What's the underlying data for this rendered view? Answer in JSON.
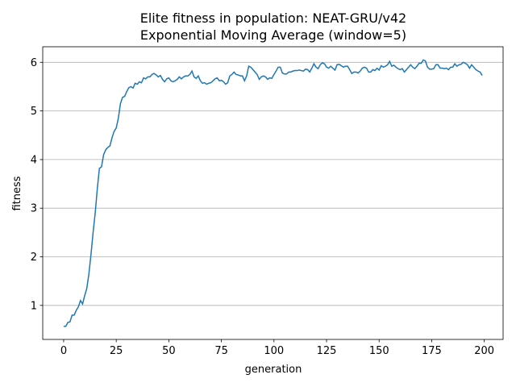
{
  "chart_data": {
    "type": "line",
    "title": "Elite fitness in population: NEAT-GRU/v42",
    "subtitle": "Exponential Moving Average (window=5)",
    "x_label": "generation",
    "y_label": "fitness",
    "x": [
      0,
      1,
      2,
      3,
      4,
      5,
      6,
      7,
      8,
      9,
      10,
      11,
      12,
      13,
      14,
      15,
      16,
      17,
      18,
      19,
      20,
      21,
      22,
      23,
      24,
      25,
      26,
      27,
      28,
      29,
      30,
      31,
      32,
      33,
      34,
      35,
      36,
      37,
      38,
      39,
      40,
      41,
      42,
      43,
      44,
      45,
      46,
      47,
      48,
      49,
      50,
      51,
      52,
      53,
      54,
      55,
      56,
      57,
      58,
      59,
      60,
      61,
      62,
      63,
      64,
      65,
      66,
      67,
      68,
      69,
      70,
      71,
      72,
      73,
      74,
      75,
      76,
      77,
      78,
      79,
      80,
      81,
      82,
      83,
      84,
      85,
      86,
      87,
      88,
      89,
      90,
      91,
      92,
      93,
      94,
      95,
      96,
      97,
      98,
      99,
      100,
      101,
      102,
      103,
      104,
      105,
      106,
      107,
      108,
      109,
      110,
      111,
      112,
      113,
      114,
      115,
      116,
      117,
      118,
      119,
      120,
      121,
      122,
      123,
      124,
      125,
      126,
      127,
      128,
      129,
      130,
      131,
      132,
      133,
      134,
      135,
      136,
      137,
      138,
      139,
      140,
      141,
      142,
      143,
      144,
      145,
      146,
      147,
      148,
      149,
      150,
      151,
      152,
      153,
      154,
      155,
      156,
      157,
      158,
      159,
      160,
      161,
      162,
      163,
      164,
      165,
      166,
      167,
      168,
      169,
      170,
      171,
      172,
      173,
      174,
      175,
      176,
      177,
      178,
      179,
      180,
      181,
      182,
      183,
      184,
      185,
      186,
      187,
      188,
      189,
      190,
      191,
      192,
      193,
      194,
      195,
      196,
      197,
      198,
      199
    ],
    "series": [
      {
        "name": "fitness",
        "color": "#1f77b4",
        "values": [
          0.57,
          0.57,
          0.65,
          0.66,
          0.8,
          0.8,
          0.9,
          0.97,
          1.1,
          1.03,
          1.2,
          1.35,
          1.65,
          2.05,
          2.5,
          2.9,
          3.4,
          3.82,
          3.85,
          4.1,
          4.2,
          4.25,
          4.28,
          4.45,
          4.58,
          4.65,
          4.85,
          5.15,
          5.28,
          5.3,
          5.4,
          5.48,
          5.5,
          5.47,
          5.57,
          5.55,
          5.6,
          5.58,
          5.68,
          5.66,
          5.7,
          5.7,
          5.75,
          5.77,
          5.74,
          5.7,
          5.73,
          5.65,
          5.6,
          5.66,
          5.68,
          5.62,
          5.6,
          5.62,
          5.65,
          5.7,
          5.66,
          5.7,
          5.72,
          5.72,
          5.75,
          5.82,
          5.7,
          5.67,
          5.72,
          5.62,
          5.57,
          5.58,
          5.55,
          5.57,
          5.58,
          5.62,
          5.66,
          5.68,
          5.62,
          5.63,
          5.6,
          5.55,
          5.58,
          5.72,
          5.75,
          5.8,
          5.75,
          5.74,
          5.72,
          5.72,
          5.62,
          5.72,
          5.92,
          5.9,
          5.85,
          5.8,
          5.75,
          5.65,
          5.7,
          5.72,
          5.7,
          5.65,
          5.68,
          5.67,
          5.75,
          5.82,
          5.9,
          5.9,
          5.78,
          5.76,
          5.76,
          5.8,
          5.8,
          5.82,
          5.83,
          5.83,
          5.84,
          5.83,
          5.82,
          5.86,
          5.85,
          5.8,
          5.88,
          5.97,
          5.9,
          5.87,
          5.95,
          5.99,
          5.97,
          5.9,
          5.88,
          5.92,
          5.88,
          5.84,
          5.95,
          5.96,
          5.93,
          5.9,
          5.92,
          5.92,
          5.85,
          5.77,
          5.8,
          5.8,
          5.78,
          5.82,
          5.88,
          5.9,
          5.88,
          5.8,
          5.8,
          5.85,
          5.83,
          5.88,
          5.84,
          5.93,
          5.9,
          5.92,
          5.95,
          6.02,
          5.92,
          5.94,
          5.9,
          5.87,
          5.85,
          5.87,
          5.8,
          5.85,
          5.9,
          5.95,
          5.9,
          5.87,
          5.92,
          5.98,
          5.98,
          6.05,
          6.03,
          5.9,
          5.86,
          5.86,
          5.87,
          5.95,
          5.95,
          5.88,
          5.88,
          5.87,
          5.88,
          5.85,
          5.9,
          5.9,
          5.97,
          5.92,
          5.95,
          5.96,
          6.0,
          5.98,
          5.95,
          5.88,
          5.95,
          5.9,
          5.85,
          5.82,
          5.8,
          5.73
        ]
      }
    ],
    "xlim": [
      -9.95,
      208.95
    ],
    "xticks": [
      0,
      25,
      50,
      75,
      100,
      125,
      150,
      175,
      200
    ],
    "ylim": [
      0.3,
      6.32
    ],
    "yticks": [
      1,
      2,
      3,
      4,
      5,
      6
    ],
    "grid": "y"
  }
}
